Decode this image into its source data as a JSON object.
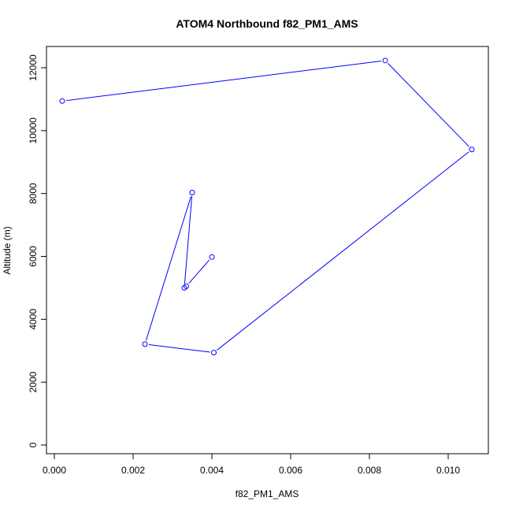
{
  "chart_data": {
    "type": "line",
    "title": "ATOM4 Northbound f82_PM1_AMS",
    "xlabel": "f82_PM1_AMS",
    "ylabel": "Altitude (m)",
    "xlim": [
      0.0,
      0.011
    ],
    "ylim": [
      0,
      12500
    ],
    "xticks": [
      0.0,
      0.002,
      0.004,
      0.006,
      0.008,
      0.01
    ],
    "xtick_labels": [
      "0.000",
      "0.002",
      "0.004",
      "0.006",
      "0.008",
      "0.010"
    ],
    "yticks": [
      0,
      2000,
      4000,
      6000,
      8000,
      10000,
      12000
    ],
    "ytick_labels": [
      "0",
      "2000",
      "4000",
      "6000",
      "8000",
      "10000",
      "12000"
    ],
    "grid": false,
    "markers": "open-circle",
    "line_color": "#0000ff",
    "series": [
      {
        "x": [
          0.004,
          0.00335,
          0.0033,
          0.0035,
          0.0023,
          0.00405,
          0.0106,
          0.0084,
          0.0002
        ],
        "y": [
          5980,
          5050,
          5000,
          8030,
          3210,
          2940,
          9400,
          12230,
          10940
        ]
      }
    ]
  }
}
